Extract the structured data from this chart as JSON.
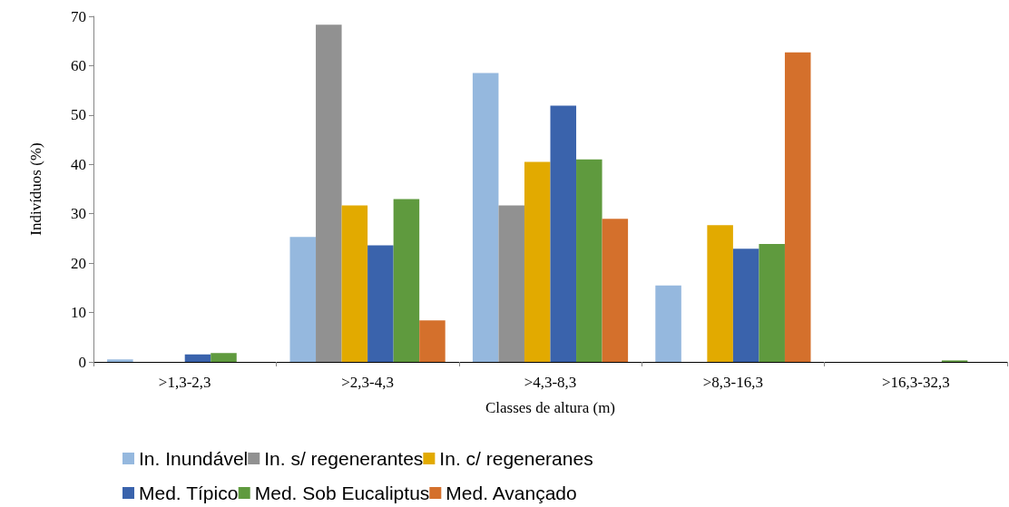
{
  "chart_data": {
    "type": "bar",
    "xlabel": "Classes de altura (m)",
    "ylabel": "Indivíduos (%)",
    "categories": [
      ">1,3-2,3",
      ">2,3-4,3",
      ">4,3-8,3",
      ">8,3-16,3",
      ">16,3-32,3"
    ],
    "series": [
      {
        "name": "In. Inundável",
        "color": "#95b8de",
        "values": [
          0.5,
          25.3,
          58.5,
          15.5,
          0
        ]
      },
      {
        "name": "In. s/ regenerantes",
        "color": "#919191",
        "values": [
          0,
          68.3,
          31.7,
          0,
          0
        ]
      },
      {
        "name": "In. c/ regeneranes",
        "color": "#e2aa00",
        "values": [
          0,
          31.7,
          40.5,
          27.7,
          0
        ]
      },
      {
        "name": "Med. Típico",
        "color": "#3a63ac",
        "values": [
          1.5,
          23.6,
          51.9,
          22.9,
          0
        ]
      },
      {
        "name": "Med. Sob Eucaliptus",
        "color": "#5f9a3e",
        "values": [
          1.8,
          33,
          41,
          23.9,
          0.3
        ]
      },
      {
        "name": "Med. Avançado",
        "color": "#d4702c",
        "values": [
          0,
          8.4,
          29,
          62.7,
          0
        ]
      }
    ],
    "ylim": [
      0,
      70
    ],
    "yticks": [
      0,
      10,
      20,
      30,
      40,
      50,
      60,
      70
    ],
    "grid": false,
    "legend": "bottom"
  }
}
